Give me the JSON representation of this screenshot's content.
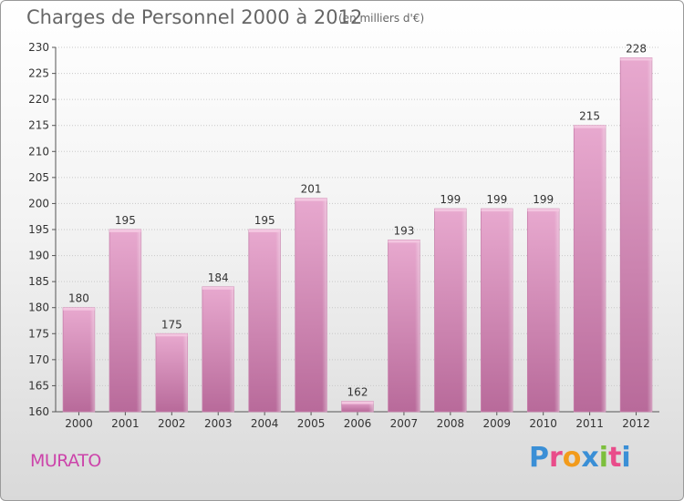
{
  "header": {
    "title": "Charges de Personnel 2000 à 2012",
    "subtitle": "(en milliers d'€)"
  },
  "footer": {
    "commune": "MURATO",
    "logo_letters": [
      "P",
      "r",
      "o",
      "x",
      "i",
      "t",
      "i"
    ],
    "logo_colors": [
      "#3a8fd6",
      "#e94c8a",
      "#f29b1c",
      "#3a8fd6",
      "#7cbf3c",
      "#e94c8a",
      "#3a8fd6"
    ]
  },
  "chart_data": {
    "type": "bar",
    "title": "Charges de Personnel 2000 à 2012",
    "subtitle": "(en milliers d'€)",
    "categories": [
      "2000",
      "2001",
      "2002",
      "2003",
      "2004",
      "2005",
      "2006",
      "2007",
      "2008",
      "2009",
      "2010",
      "2011",
      "2012"
    ],
    "values": [
      180,
      195,
      175,
      184,
      195,
      201,
      162,
      193,
      199,
      199,
      199,
      215,
      228
    ],
    "ylim": [
      160,
      230
    ],
    "yticks": [
      160,
      165,
      170,
      175,
      180,
      185,
      190,
      195,
      200,
      205,
      210,
      215,
      220,
      225,
      230
    ],
    "grid": true,
    "bar_color": "#d67fb0"
  }
}
